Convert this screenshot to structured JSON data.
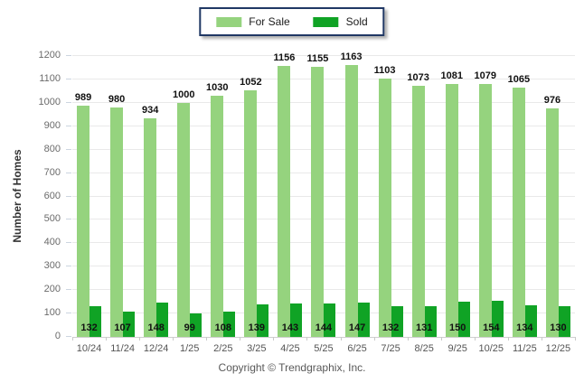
{
  "legend": {
    "items": [
      {
        "label": "For Sale",
        "color": "#95D37E"
      },
      {
        "label": "Sold",
        "color": "#10A325"
      }
    ]
  },
  "chart_data": {
    "type": "bar",
    "title": "",
    "categories": [
      "10/24",
      "11/24",
      "12/24",
      "1/25",
      "2/25",
      "3/25",
      "4/25",
      "5/25",
      "6/25",
      "7/25",
      "8/25",
      "9/25",
      "10/25",
      "11/25",
      "12/25"
    ],
    "series": [
      {
        "name": "For Sale",
        "color": "#95D37E",
        "values": [
          989,
          980,
          934,
          1000,
          1030,
          1052,
          1156,
          1155,
          1163,
          1103,
          1073,
          1081,
          1079,
          1065,
          976
        ]
      },
      {
        "name": "Sold",
        "color": "#10A325",
        "values": [
          132,
          107,
          148,
          99,
          108,
          139,
          143,
          144,
          147,
          132,
          131,
          150,
          154,
          134,
          130
        ]
      }
    ],
    "ylabel": "Number of Homes",
    "ylim": [
      0,
      1200
    ],
    "ytick_step": 100,
    "grid": true,
    "legend_position": "top-center",
    "value_labels": "shown"
  },
  "footer": {
    "copyright": "Copyright © Trendgraphix, Inc."
  }
}
